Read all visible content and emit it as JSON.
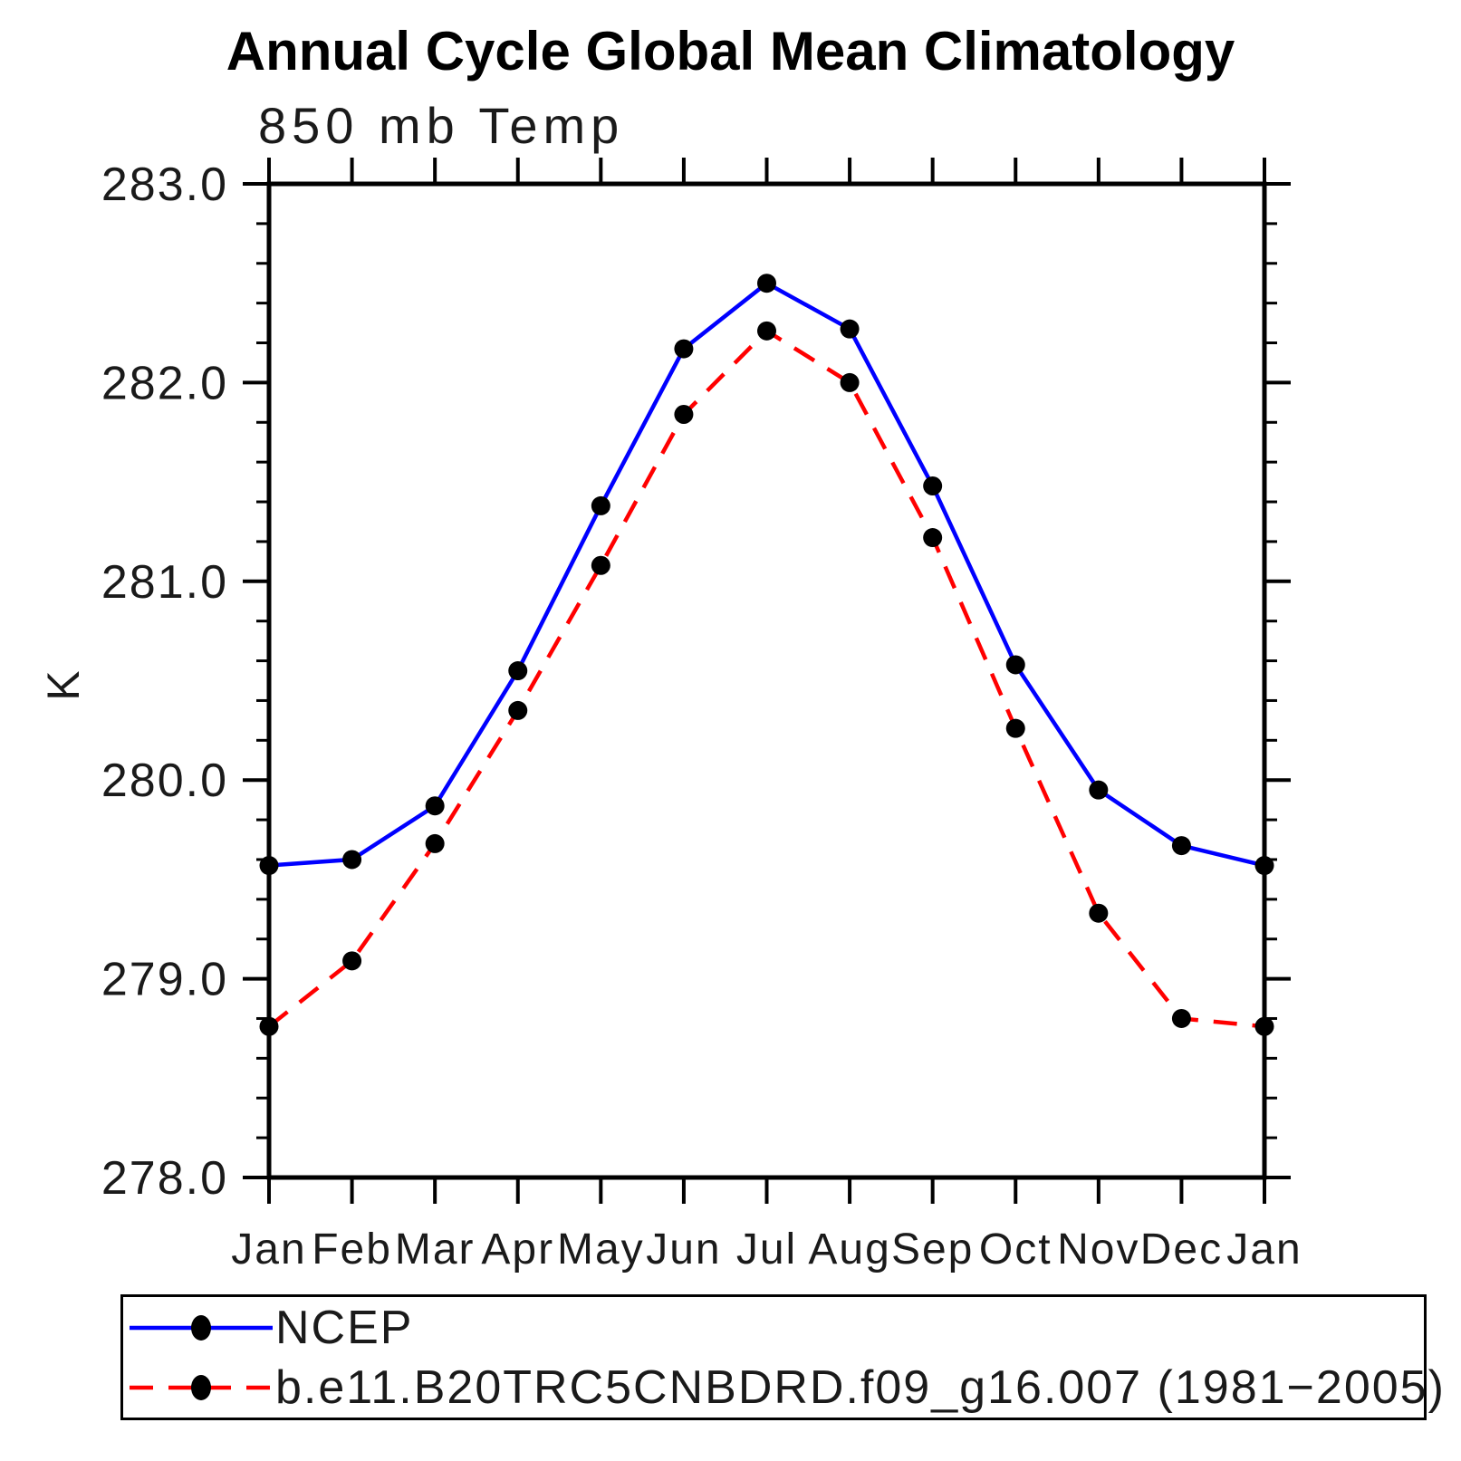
{
  "page": {
    "background": "#ffffff"
  },
  "chart_data": {
    "type": "line",
    "title": "Annual Cycle Global Mean Climatology",
    "subtitle": "850 mb Temp",
    "ylabel": "K",
    "xlabel": "",
    "ylim": [
      278.0,
      283.0
    ],
    "y_major_step": 1.0,
    "y_minor_step": 0.2,
    "y_tick_labels": [
      "278.0",
      "279.0",
      "280.0",
      "281.0",
      "282.0",
      "283.0"
    ],
    "categories": [
      "Jan",
      "Feb",
      "Mar",
      "Apr",
      "May",
      "Jun",
      "Jul",
      "Aug",
      "Sep",
      "Oct",
      "Nov",
      "Dec",
      "Jan"
    ],
    "grid": "off",
    "legend_position": "bottom",
    "axis_color": "#000000",
    "marker_color": "#000000",
    "series": [
      {
        "name": "NCEP",
        "color": "#0000ff",
        "style": "solid",
        "values": [
          279.57,
          279.6,
          279.87,
          280.55,
          281.38,
          282.17,
          282.5,
          282.27,
          281.48,
          280.58,
          279.95,
          279.67,
          279.57
        ]
      },
      {
        "name": "b.e11.B20TRC5CNBDRD.f09_g16.007 (1981−2005)",
        "color": "#ff0000",
        "style": "dashed",
        "values": [
          278.76,
          279.09,
          279.68,
          280.35,
          281.08,
          281.84,
          282.26,
          282.0,
          281.22,
          280.26,
          279.33,
          278.8,
          278.76
        ]
      }
    ]
  }
}
